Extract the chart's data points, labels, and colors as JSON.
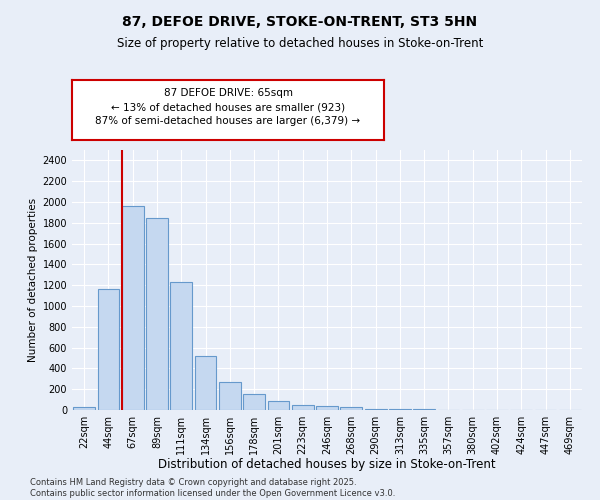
{
  "title": "87, DEFOE DRIVE, STOKE-ON-TRENT, ST3 5HN",
  "subtitle": "Size of property relative to detached houses in Stoke-on-Trent",
  "xlabel": "Distribution of detached houses by size in Stoke-on-Trent",
  "ylabel": "Number of detached properties",
  "categories": [
    "22sqm",
    "44sqm",
    "67sqm",
    "89sqm",
    "111sqm",
    "134sqm",
    "156sqm",
    "178sqm",
    "201sqm",
    "223sqm",
    "246sqm",
    "268sqm",
    "290sqm",
    "313sqm",
    "335sqm",
    "357sqm",
    "380sqm",
    "402sqm",
    "424sqm",
    "447sqm",
    "469sqm"
  ],
  "values": [
    25,
    1165,
    1960,
    1850,
    1230,
    515,
    270,
    155,
    85,
    45,
    35,
    30,
    10,
    5,
    5,
    3,
    2,
    2,
    2,
    1,
    1
  ],
  "bar_color": "#c5d8f0",
  "bar_edge_color": "#6699cc",
  "vline_color": "#cc0000",
  "annotation_text": "87 DEFOE DRIVE: 65sqm\n← 13% of detached houses are smaller (923)\n87% of semi-detached houses are larger (6,379) →",
  "annotation_box_color": "#ffffff",
  "annotation_box_edge": "#cc0000",
  "ylim": [
    0,
    2500
  ],
  "yticks": [
    0,
    200,
    400,
    600,
    800,
    1000,
    1200,
    1400,
    1600,
    1800,
    2000,
    2200,
    2400
  ],
  "background_color": "#e8eef8",
  "footer": "Contains HM Land Registry data © Crown copyright and database right 2025.\nContains public sector information licensed under the Open Government Licence v3.0.",
  "title_fontsize": 10,
  "subtitle_fontsize": 8.5,
  "xlabel_fontsize": 8.5,
  "ylabel_fontsize": 7.5,
  "tick_fontsize": 7,
  "footer_fontsize": 6,
  "annot_fontsize": 7.5
}
